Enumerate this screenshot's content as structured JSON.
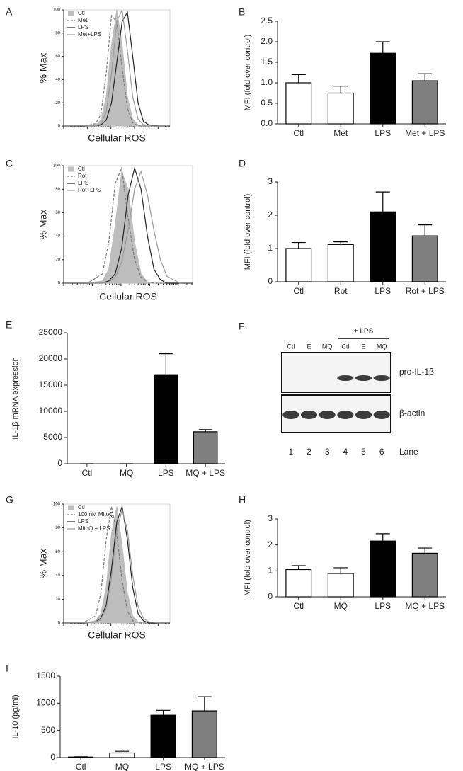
{
  "chart_data": [
    {
      "panel": "A",
      "type": "histogram_overlay",
      "ylabel": "% Max",
      "xlabel": "Cellular ROS",
      "legend": "upper left",
      "x": [
        20,
        30,
        35,
        40,
        45,
        50,
        55,
        60,
        65,
        70,
        75,
        80,
        90
      ],
      "xlim": [
        0,
        100
      ],
      "ylim": [
        0,
        100
      ],
      "yticks": [
        0,
        20,
        40,
        60,
        80,
        100
      ],
      "series": [
        {
          "name": "Ctl",
          "color": "#bdbdbd",
          "style": "filled",
          "values": [
            0,
            1,
            5,
            25,
            70,
            100,
            70,
            25,
            6,
            1,
            0,
            0,
            0
          ]
        },
        {
          "name": "Met",
          "color": "#777777",
          "style": "dashed",
          "values": [
            0,
            2,
            10,
            45,
            95,
            90,
            50,
            15,
            3,
            0,
            0,
            0,
            0
          ]
        },
        {
          "name": "LPS",
          "color": "#222222",
          "style": "solid",
          "values": [
            0,
            0,
            1,
            5,
            20,
            55,
            90,
            98,
            60,
            20,
            4,
            1,
            0
          ]
        },
        {
          "name": "Met+LPS",
          "color": "#9a9a9a",
          "style": "solid",
          "values": [
            0,
            0,
            2,
            12,
            45,
            90,
            100,
            65,
            25,
            6,
            1,
            0,
            0
          ]
        }
      ]
    },
    {
      "panel": "B",
      "type": "bar",
      "ylabel": "MFI (fold over control)",
      "categories": [
        "Ctl",
        "Met",
        "LPS",
        "Met + LPS"
      ],
      "values": [
        1.0,
        0.75,
        1.72,
        1.05
      ],
      "errors": [
        0.2,
        0.17,
        0.28,
        0.17
      ],
      "colors": [
        "#ffffff",
        "#ffffff",
        "#000000",
        "#7f7f7f"
      ],
      "ylim": [
        0,
        2.5
      ],
      "yticks": [
        {
          "value": 0,
          "label": "0.0"
        },
        0.5,
        {
          "value": 1,
          "label": "1.0"
        },
        1.5,
        {
          "value": 2,
          "label": "2.0"
        },
        2.5
      ]
    },
    {
      "panel": "C",
      "type": "histogram_overlay",
      "ylabel": "% Max",
      "xlabel": "Cellular ROS",
      "legend": "upper left",
      "x": [
        20,
        30,
        35,
        40,
        45,
        50,
        55,
        60,
        65,
        70,
        75,
        80,
        90
      ],
      "xlim": [
        0,
        100
      ],
      "ylim": [
        0,
        100
      ],
      "yticks": [
        0,
        20,
        40,
        60,
        80,
        100
      ],
      "series": [
        {
          "name": "Ctl",
          "color": "#bdbdbd",
          "style": "filled",
          "values": [
            0,
            2,
            12,
            50,
            95,
            80,
            35,
            8,
            1,
            0,
            0,
            0,
            0
          ]
        },
        {
          "name": "Rot",
          "color": "#777777",
          "style": "dashed",
          "values": [
            1,
            8,
            35,
            85,
            98,
            55,
            20,
            5,
            1,
            0,
            0,
            0,
            0
          ]
        },
        {
          "name": "LPS",
          "color": "#222222",
          "style": "solid",
          "values": [
            0,
            0,
            2,
            8,
            30,
            75,
            98,
            80,
            40,
            12,
            3,
            0,
            0
          ]
        },
        {
          "name": "Rot+LPS",
          "color": "#9a9a9a",
          "style": "solid",
          "values": [
            0,
            0,
            1,
            5,
            18,
            45,
            80,
            95,
            75,
            45,
            20,
            6,
            0
          ]
        }
      ]
    },
    {
      "panel": "D",
      "type": "bar",
      "ylabel": "MFI (fold over control)",
      "categories": [
        "Ctl",
        "Rot",
        "LPS",
        "Rot + LPS"
      ],
      "values": [
        1.0,
        1.12,
        2.1,
        1.38
      ],
      "errors": [
        0.18,
        0.08,
        0.6,
        0.33
      ],
      "colors": [
        "#ffffff",
        "#ffffff",
        "#000000",
        "#7f7f7f"
      ],
      "ylim": [
        0,
        3
      ],
      "yticks": [
        0,
        1,
        2,
        3
      ]
    },
    {
      "panel": "E",
      "type": "bar",
      "ylabel": "IL-1β mRNA expression",
      "categories": [
        "Ctl",
        "MQ",
        "LPS",
        "MQ + LPS"
      ],
      "values": [
        0,
        0,
        17000,
        6100
      ],
      "errors": [
        0,
        0,
        4000,
        400
      ],
      "colors": [
        "#ffffff",
        "#ffffff",
        "#000000",
        "#7f7f7f"
      ],
      "ylim": [
        0,
        25000
      ],
      "yticks": [
        0,
        5000,
        10000,
        15000,
        20000,
        25000
      ]
    },
    {
      "panel": "F",
      "type": "blot",
      "treatment": "+ LPS",
      "lanes": [
        "Ctl",
        "E",
        "MQ",
        "Ctl",
        "E",
        "MQ"
      ],
      "bands": [
        "pro-IL-1β",
        "β-actin"
      ],
      "lane_numbers": [
        1,
        2,
        3,
        4,
        5,
        6
      ],
      "lane_axis_label": "Lane"
    },
    {
      "panel": "G",
      "type": "histogram_overlay",
      "ylabel": "% Max",
      "xlabel": "Cellular ROS",
      "legend": "upper left",
      "x": [
        20,
        30,
        35,
        40,
        45,
        50,
        55,
        60,
        65,
        70,
        75,
        80,
        90
      ],
      "xlim": [
        0,
        100
      ],
      "ylim": [
        0,
        100
      ],
      "yticks": [
        0,
        20,
        40,
        60,
        80,
        100
      ],
      "series": [
        {
          "name": "Ctl",
          "color": "#bdbdbd",
          "style": "filled",
          "values": [
            0,
            2,
            8,
            30,
            75,
            98,
            65,
            25,
            6,
            1,
            0,
            0,
            0
          ]
        },
        {
          "name": "100 nM MitoQ",
          "color": "#777777",
          "style": "dashed",
          "values": [
            1,
            6,
            25,
            70,
            98,
            75,
            35,
            10,
            2,
            0,
            0,
            0,
            0
          ]
        },
        {
          "name": "LPS",
          "color": "#222222",
          "style": "solid",
          "values": [
            0,
            1,
            4,
            15,
            45,
            85,
            98,
            70,
            30,
            8,
            2,
            0,
            0
          ]
        },
        {
          "name": "MitoQ + LPS",
          "color": "#9a9a9a",
          "style": "solid",
          "values": [
            0,
            1,
            3,
            12,
            38,
            78,
            95,
            78,
            40,
            14,
            4,
            1,
            0
          ]
        }
      ]
    },
    {
      "panel": "H",
      "type": "bar",
      "ylabel": "MFI (fold over control)",
      "categories": [
        "Ctl",
        "MQ",
        "LPS",
        "MQ + LPS"
      ],
      "values": [
        1.05,
        0.9,
        2.15,
        1.68
      ],
      "errors": [
        0.15,
        0.22,
        0.28,
        0.2
      ],
      "colors": [
        "#ffffff",
        "#ffffff",
        "#000000",
        "#7f7f7f"
      ],
      "ylim": [
        0,
        3
      ],
      "yticks": [
        0,
        1,
        2,
        3
      ]
    },
    {
      "panel": "I",
      "type": "bar",
      "ylabel": "IL-10 (pg/ml)",
      "categories": [
        "Ctl",
        "MQ",
        "LPS",
        "MQ + LPS"
      ],
      "values": [
        10,
        85,
        780,
        860
      ],
      "errors": [
        5,
        30,
        90,
        260
      ],
      "colors": [
        "#ffffff",
        "#ffffff",
        "#000000",
        "#7f7f7f"
      ],
      "ylim": [
        0,
        1500
      ],
      "yticks": [
        0,
        500,
        1000,
        1500
      ]
    }
  ]
}
